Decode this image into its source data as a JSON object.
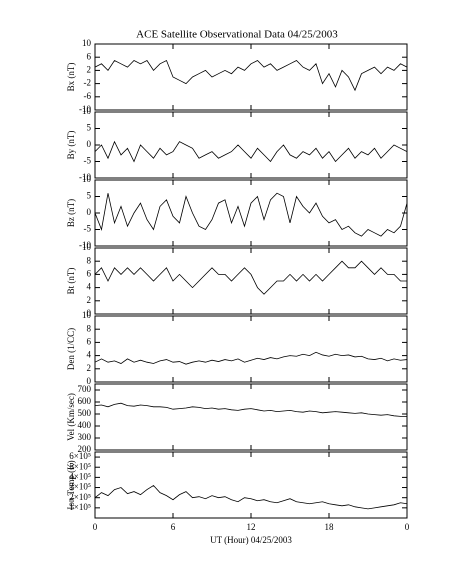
{
  "chart_data": [
    {
      "type": "line",
      "title": "ACE Satellite Observational Data  04/25/2003",
      "ylabel": "Bx (nT)",
      "x": [
        0,
        0.5,
        1,
        1.5,
        2,
        2.5,
        3,
        3.5,
        4,
        4.5,
        5,
        5.5,
        6,
        6.5,
        7,
        7.5,
        8,
        8.5,
        9,
        9.5,
        10,
        10.5,
        11,
        11.5,
        12,
        12.5,
        13,
        13.5,
        14,
        14.5,
        15,
        15.5,
        16,
        16.5,
        17,
        17.5,
        18,
        18.5,
        19,
        19.5,
        20,
        20.5,
        21,
        21.5,
        22,
        22.5,
        23,
        23.5,
        24
      ],
      "values": [
        3,
        4,
        2,
        5,
        4,
        3,
        5,
        4,
        5,
        2,
        4,
        5,
        0,
        -1,
        -2,
        0,
        1,
        2,
        0,
        1,
        2,
        1,
        3,
        2,
        4,
        5,
        3,
        4,
        2,
        3,
        4,
        5,
        3,
        2,
        4,
        -2,
        1,
        -3,
        2,
        0,
        -4,
        1,
        2,
        3,
        1,
        3,
        2,
        4,
        3
      ],
      "ylim": [
        -10,
        10
      ],
      "yticks": [
        -10,
        -6,
        -2,
        2,
        6,
        10
      ]
    },
    {
      "type": "line",
      "ylabel": "By (nT)",
      "x": [
        0,
        0.5,
        1,
        1.5,
        2,
        2.5,
        3,
        3.5,
        4,
        4.5,
        5,
        5.5,
        6,
        6.5,
        7,
        7.5,
        8,
        8.5,
        9,
        9.5,
        10,
        10.5,
        11,
        11.5,
        12,
        12.5,
        13,
        13.5,
        14,
        14.5,
        15,
        15.5,
        16,
        16.5,
        17,
        17.5,
        18,
        18.5,
        19,
        19.5,
        20,
        20.5,
        21,
        21.5,
        22,
        22.5,
        23,
        23.5,
        24
      ],
      "values": [
        -2,
        0,
        -4,
        1,
        -3,
        -1,
        -5,
        0,
        -2,
        -4,
        -1,
        -3,
        -2,
        1,
        0,
        -1,
        -4,
        -3,
        -2,
        -4,
        -3,
        -2,
        0,
        -2,
        -4,
        -1,
        -3,
        -5,
        -2,
        0,
        -3,
        -4,
        -2,
        -3,
        -1,
        -4,
        -2,
        -5,
        -3,
        -1,
        -4,
        -2,
        -3,
        -1,
        -4,
        -2,
        0,
        -1,
        -2
      ],
      "ylim": [
        -10,
        10
      ],
      "yticks": [
        -10,
        -5,
        0,
        5,
        10
      ]
    },
    {
      "type": "line",
      "ylabel": "Bz (nT)",
      "x": [
        0,
        0.5,
        1,
        1.5,
        2,
        2.5,
        3,
        3.5,
        4,
        4.5,
        5,
        5.5,
        6,
        6.5,
        7,
        7.5,
        8,
        8.5,
        9,
        9.5,
        10,
        10.5,
        11,
        11.5,
        12,
        12.5,
        13,
        13.5,
        14,
        14.5,
        15,
        15.5,
        16,
        16.5,
        17,
        17.5,
        18,
        18.5,
        19,
        19.5,
        20,
        20.5,
        21,
        21.5,
        22,
        22.5,
        23,
        23.5,
        24
      ],
      "values": [
        0,
        -5,
        6,
        -3,
        2,
        -4,
        0,
        3,
        -2,
        -5,
        2,
        4,
        -1,
        -3,
        5,
        0,
        -4,
        -5,
        -2,
        3,
        4,
        -3,
        2,
        -4,
        3,
        5,
        -2,
        4,
        6,
        5,
        -3,
        5,
        2,
        0,
        3,
        -1,
        -3,
        -2,
        -5,
        -4,
        -6,
        -7,
        -5,
        -6,
        -7,
        -5,
        -6,
        -4,
        3
      ],
      "ylim": [
        -10,
        10
      ],
      "yticks": [
        -10,
        -5,
        0,
        5,
        10
      ]
    },
    {
      "type": "line",
      "ylabel": "Bt (nT)",
      "x": [
        0,
        0.5,
        1,
        1.5,
        2,
        2.5,
        3,
        3.5,
        4,
        4.5,
        5,
        5.5,
        6,
        6.5,
        7,
        7.5,
        8,
        8.5,
        9,
        9.5,
        10,
        10.5,
        11,
        11.5,
        12,
        12.5,
        13,
        13.5,
        14,
        14.5,
        15,
        15.5,
        16,
        16.5,
        17,
        17.5,
        18,
        18.5,
        19,
        19.5,
        20,
        20.5,
        21,
        21.5,
        22,
        22.5,
        23,
        23.5,
        24
      ],
      "values": [
        6,
        7,
        5,
        7,
        6,
        7,
        6,
        7,
        6,
        5,
        6,
        7,
        5,
        6,
        5,
        4,
        5,
        6,
        7,
        6,
        6,
        5,
        6,
        7,
        6,
        4,
        3,
        4,
        5,
        5,
        6,
        5,
        6,
        5,
        6,
        5,
        6,
        7,
        8,
        7,
        7,
        8,
        7,
        6,
        7,
        6,
        6,
        5,
        5
      ],
      "ylim": [
        0,
        10
      ],
      "yticks": [
        0,
        2,
        4,
        6,
        8,
        10
      ]
    },
    {
      "type": "line",
      "ylabel": "Den (1/CC)",
      "x": [
        0,
        0.5,
        1,
        1.5,
        2,
        2.5,
        3,
        3.5,
        4,
        4.5,
        5,
        5.5,
        6,
        6.5,
        7,
        7.5,
        8,
        8.5,
        9,
        9.5,
        10,
        10.5,
        11,
        11.5,
        12,
        12.5,
        13,
        13.5,
        14,
        14.5,
        15,
        15.5,
        16,
        16.5,
        17,
        17.5,
        18,
        18.5,
        19,
        19.5,
        20,
        20.5,
        21,
        21.5,
        22,
        22.5,
        23,
        23.5,
        24
      ],
      "values": [
        3,
        3.5,
        3,
        3.2,
        2.8,
        3.5,
        3,
        3.3,
        3,
        2.8,
        3.2,
        3.4,
        3,
        3.1,
        2.7,
        3,
        3.2,
        3,
        3.3,
        3.1,
        3.4,
        3.2,
        3.5,
        3,
        3.3,
        3.6,
        3.4,
        3.7,
        3.5,
        3.8,
        4,
        3.9,
        4.2,
        4,
        4.5,
        4.1,
        3.9,
        4.2,
        4,
        4.1,
        3.8,
        3.9,
        3.5,
        3.4,
        3.6,
        3.2,
        3.5,
        3.3,
        3.4
      ],
      "ylim": [
        0,
        10
      ],
      "yticks": [
        0,
        2,
        4,
        6,
        8,
        10
      ]
    },
    {
      "type": "line",
      "ylabel": "Vel (Km/sec)",
      "x": [
        0,
        0.5,
        1,
        1.5,
        2,
        2.5,
        3,
        3.5,
        4,
        4.5,
        5,
        5.5,
        6,
        6.5,
        7,
        7.5,
        8,
        8.5,
        9,
        9.5,
        10,
        10.5,
        11,
        11.5,
        12,
        12.5,
        13,
        13.5,
        14,
        14.5,
        15,
        15.5,
        16,
        16.5,
        17,
        17.5,
        18,
        18.5,
        19,
        19.5,
        20,
        20.5,
        21,
        21.5,
        22,
        22.5,
        23,
        23.5,
        24
      ],
      "values": [
        570,
        575,
        560,
        580,
        590,
        570,
        565,
        575,
        570,
        560,
        560,
        555,
        540,
        545,
        550,
        560,
        555,
        545,
        550,
        540,
        545,
        535,
        530,
        540,
        545,
        535,
        525,
        530,
        520,
        525,
        530,
        520,
        515,
        525,
        520,
        510,
        515,
        520,
        515,
        510,
        505,
        510,
        500,
        495,
        490,
        495,
        485,
        480,
        480
      ],
      "ylim": [
        200,
        750
      ],
      "yticks": [
        200,
        300,
        400,
        500,
        600,
        700
      ]
    },
    {
      "type": "line",
      "ylabel": "Ion Temp (K)",
      "xlabel": "UT (Hour)  04/25/2003",
      "x": [
        0,
        0.5,
        1,
        1.5,
        2,
        2.5,
        3,
        3.5,
        4,
        4.5,
        5,
        5.5,
        6,
        6.5,
        7,
        7.5,
        8,
        8.5,
        9,
        9.5,
        10,
        10.5,
        11,
        11.5,
        12,
        12.5,
        13,
        13.5,
        14,
        14.5,
        15,
        15.5,
        16,
        16.5,
        17,
        17.5,
        18,
        18.5,
        19,
        19.5,
        20,
        20.5,
        21,
        21.5,
        22,
        22.5,
        23,
        23.5,
        24
      ],
      "values": [
        200000,
        250000,
        220000,
        280000,
        300000,
        240000,
        260000,
        230000,
        280000,
        320000,
        250000,
        220000,
        180000,
        230000,
        260000,
        200000,
        210000,
        190000,
        220000,
        200000,
        210000,
        180000,
        160000,
        200000,
        190000,
        170000,
        180000,
        160000,
        150000,
        170000,
        190000,
        160000,
        150000,
        140000,
        150000,
        160000,
        140000,
        130000,
        120000,
        130000,
        110000,
        100000,
        90000,
        100000,
        110000,
        120000,
        130000,
        150000,
        140000
      ],
      "ylim": [
        0,
        650000
      ],
      "yticks": [
        {
          "value": 100000,
          "label": "1×10⁵"
        },
        {
          "value": 200000,
          "label": "2×10⁵"
        },
        {
          "value": 300000,
          "label": "3×10⁵"
        },
        {
          "value": 400000,
          "label": "4×10⁵"
        },
        {
          "value": 500000,
          "label": "5×10⁵"
        },
        {
          "value": 600000,
          "label": "6×10⁵"
        }
      ],
      "xlim": [
        0,
        24
      ],
      "xticks": [
        0,
        6,
        12,
        18,
        {
          "value": 24,
          "label": "0"
        }
      ]
    }
  ]
}
